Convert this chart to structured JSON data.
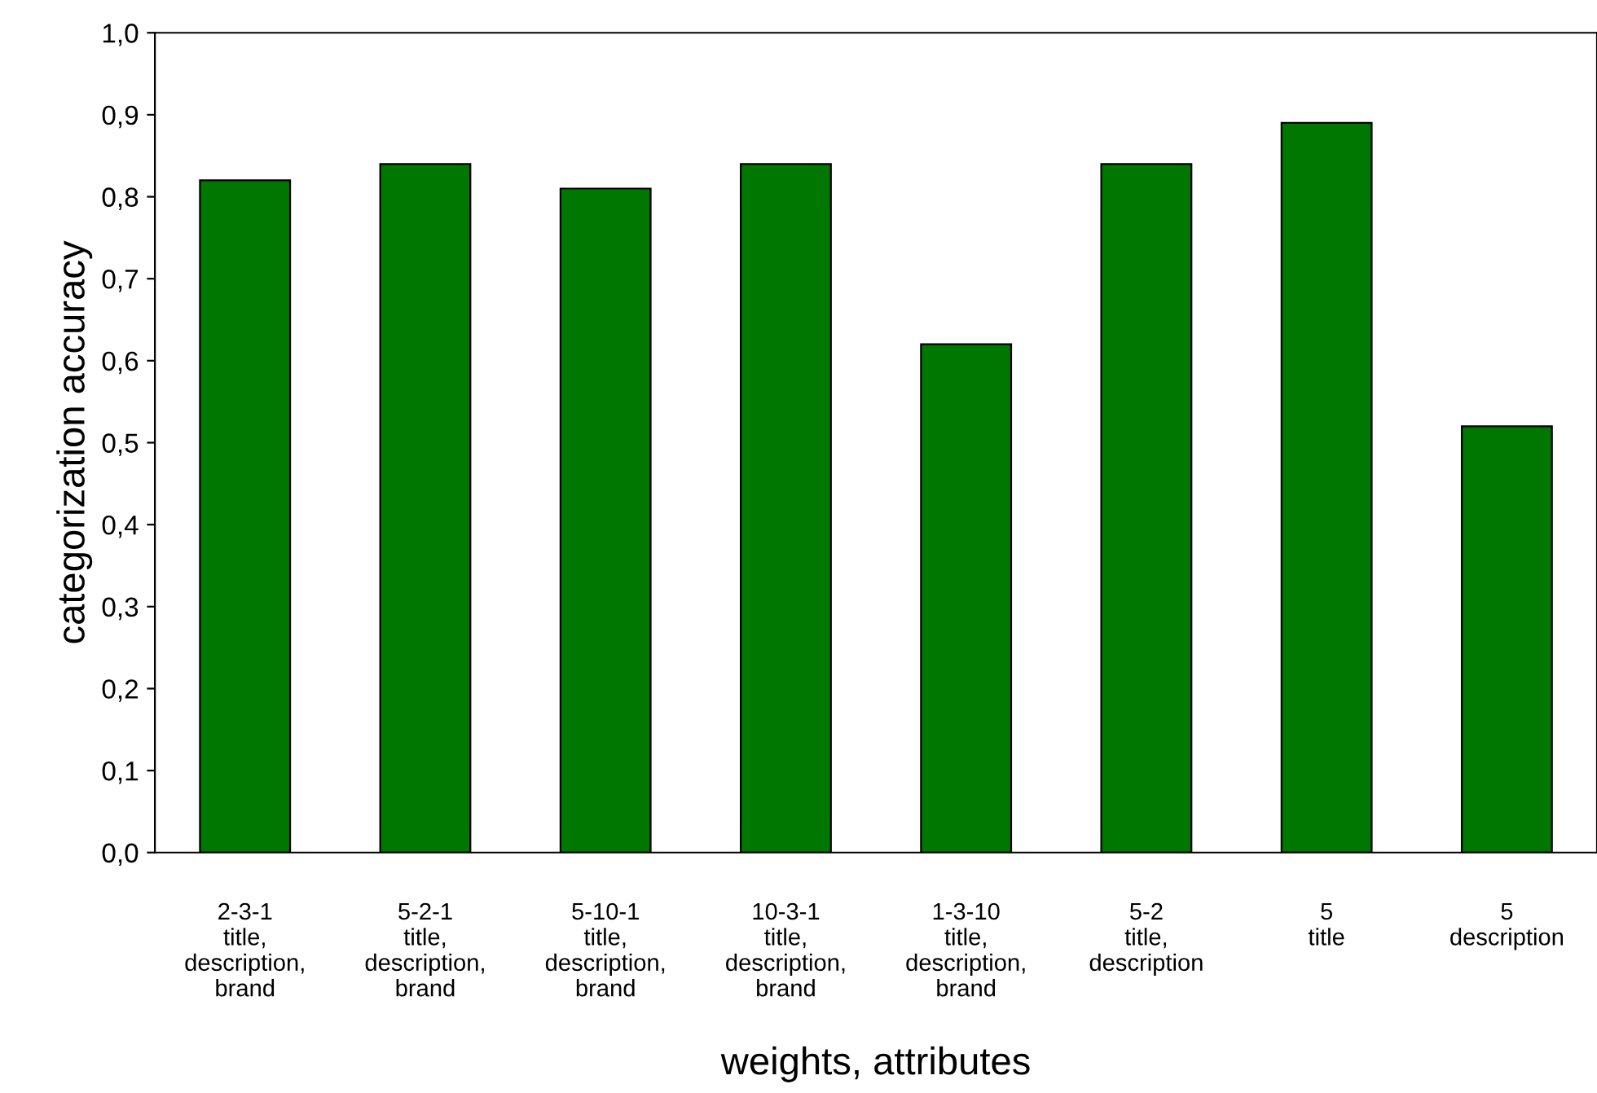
{
  "chart_data": {
    "type": "bar",
    "xlabel": "weights, attributes",
    "ylabel": "categorization accuracy",
    "categories": [
      "2-3-1\ntitle,\ndescription,\nbrand",
      "5-2-1\ntitle,\ndescription,\nbrand",
      "5-10-1\ntitle,\ndescription,\nbrand",
      "10-3-1\ntitle,\ndescription,\nbrand",
      "1-3-10\ntitle,\ndescription,\nbrand",
      "5-2\ntitle,\ndescription",
      "5\ntitle",
      "5\ndescription"
    ],
    "values": [
      0.82,
      0.84,
      0.81,
      0.84,
      0.62,
      0.84,
      0.89,
      0.52
    ],
    "color": "#007700",
    "ylim": [
      0,
      1
    ],
    "yticks": [
      {
        "value": 0,
        "label": "0,0"
      },
      {
        "value": 0.1,
        "label": "0,1"
      },
      {
        "value": 0.2,
        "label": "0,2"
      },
      {
        "value": 0.3,
        "label": "0,3"
      },
      {
        "value": 0.4,
        "label": "0,4"
      },
      {
        "value": 0.5,
        "label": "0,5"
      },
      {
        "value": 0.6,
        "label": "0,6"
      },
      {
        "value": 0.7,
        "label": "0,7"
      },
      {
        "value": 0.8,
        "label": "0,8"
      },
      {
        "value": 0.9,
        "label": "0,9"
      },
      {
        "value": 1,
        "label": "1,0"
      }
    ],
    "grid": false,
    "legend": false
  }
}
